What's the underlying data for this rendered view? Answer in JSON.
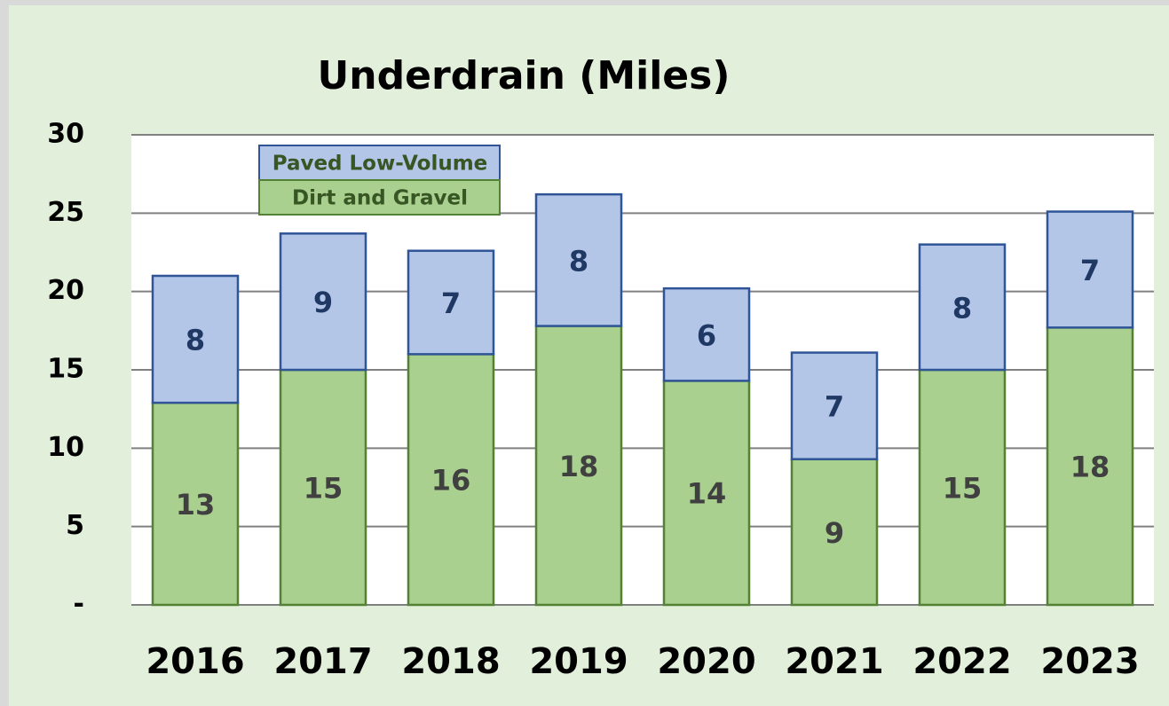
{
  "chart_data": {
    "type": "stacked_bar",
    "title": "Underdrain (Miles)",
    "categories": [
      "2016",
      "2017",
      "2018",
      "2019",
      "2020",
      "2021",
      "2022",
      "2023"
    ],
    "series": [
      {
        "name": "Dirt and Gravel",
        "color": "#a9d08e",
        "values": [
          12.9,
          15.0,
          16.0,
          17.8,
          14.3,
          9.3,
          15.0,
          17.7
        ],
        "value_labels": [
          "13",
          "15",
          "16",
          "18",
          "14",
          "9",
          "15",
          "18"
        ]
      },
      {
        "name": "Paved Low-Volume",
        "color": "#b4c6e7",
        "values": [
          8.1,
          8.7,
          6.6,
          8.4,
          5.9,
          6.8,
          8.0,
          7.4
        ],
        "value_labels": [
          "8",
          "9",
          "7",
          "8",
          "6",
          "7",
          "8",
          "7"
        ]
      }
    ],
    "ylim": [
      0,
      30
    ],
    "yticks": [
      {
        "value": 0,
        "label": "-"
      },
      5,
      10,
      15,
      20,
      25,
      30
    ],
    "grid": true,
    "legend": "upper left"
  }
}
